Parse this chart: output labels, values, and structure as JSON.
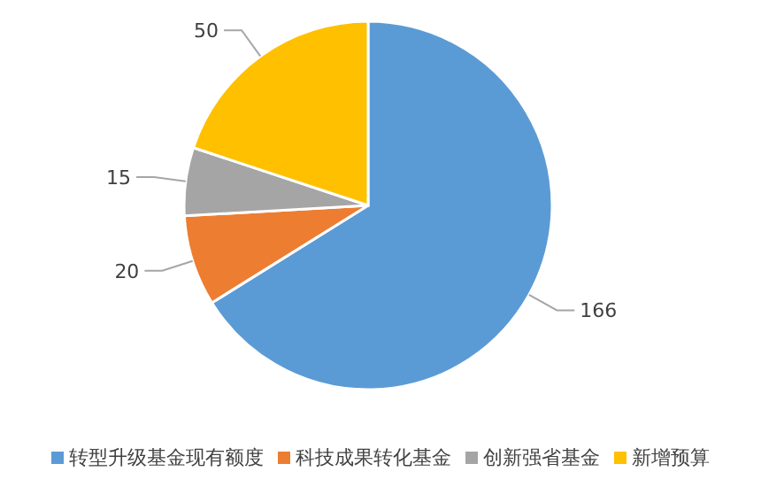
{
  "chart_data": {
    "type": "pie",
    "categories": [
      "转型升级基金现有额度",
      "科技成果转化基金",
      "创新强省基金",
      "新增预算"
    ],
    "values": [
      166,
      20,
      15,
      50
    ],
    "colors": [
      "#5b9bd5",
      "#ed7d31",
      "#a5a5a5",
      "#ffc000"
    ],
    "data_labels": true,
    "legend": "bottom"
  }
}
